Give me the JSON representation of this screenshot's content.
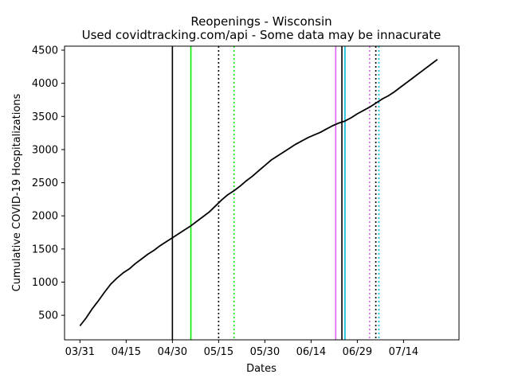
{
  "chart_data": {
    "type": "line",
    "title": "Reopenings - Wisconsin",
    "subtitle": "Used covidtracking.com/api - Some data may be innacurate",
    "xlabel": "Dates",
    "ylabel": "Cumulative COVID-19 Hospitalizations",
    "x_ticks": [
      "03/31",
      "04/15",
      "04/30",
      "05/15",
      "05/30",
      "06/14",
      "06/29",
      "07/14"
    ],
    "y_ticks": [
      500,
      1000,
      1500,
      2000,
      2500,
      3000,
      3500,
      4000,
      4500
    ],
    "xlim": [
      "03/26",
      "08/01"
    ],
    "ylim": [
      130,
      4560
    ],
    "grid": false,
    "legend": "none",
    "series": [
      {
        "color": "#000000",
        "x": [
          "03/31",
          "04/02",
          "04/04",
          "04/06",
          "04/08",
          "04/10",
          "04/12",
          "04/14",
          "04/16",
          "04/18",
          "04/20",
          "04/22",
          "04/24",
          "04/26",
          "04/28",
          "04/30",
          "05/02",
          "05/04",
          "05/06",
          "05/08",
          "05/10",
          "05/12",
          "05/14",
          "05/16",
          "05/18",
          "05/20",
          "05/22",
          "05/24",
          "05/26",
          "05/28",
          "05/30",
          "06/01",
          "06/03",
          "06/05",
          "06/07",
          "06/09",
          "06/11",
          "06/13",
          "06/15",
          "06/17",
          "06/19",
          "06/21",
          "06/23",
          "06/25",
          "06/27",
          "06/29",
          "07/01",
          "07/03",
          "07/05",
          "07/07",
          "07/09",
          "07/11",
          "07/13",
          "07/15",
          "07/17",
          "07/19",
          "07/21",
          "07/23",
          "07/25"
        ],
        "values": [
          340,
          460,
          600,
          720,
          850,
          970,
          1060,
          1140,
          1200,
          1280,
          1350,
          1420,
          1480,
          1550,
          1610,
          1670,
          1730,
          1790,
          1850,
          1920,
          1990,
          2060,
          2150,
          2240,
          2320,
          2380,
          2450,
          2530,
          2600,
          2680,
          2760,
          2840,
          2900,
          2960,
          3020,
          3080,
          3130,
          3180,
          3220,
          3260,
          3310,
          3360,
          3400,
          3430,
          3480,
          3540,
          3590,
          3640,
          3700,
          3760,
          3810,
          3870,
          3940,
          4010,
          4080,
          4150,
          4220,
          4290,
          4360
        ]
      }
    ],
    "reference_lines": [
      {
        "x": "04/30",
        "color": "#000000",
        "style": "solid"
      },
      {
        "x": "05/06",
        "color": "#00ee00",
        "style": "solid"
      },
      {
        "x": "05/15",
        "color": "#000000",
        "style": "dotted"
      },
      {
        "x": "05/20",
        "color": "#00ee00",
        "style": "dotted"
      },
      {
        "x": "06/22",
        "color": "#dd66ee",
        "style": "solid"
      },
      {
        "x": "06/24",
        "color": "#000000",
        "style": "solid"
      },
      {
        "x": "06/25",
        "color": "#00bbdd",
        "style": "solid"
      },
      {
        "x": "07/03",
        "color": "#dd66ee",
        "style": "dotted"
      },
      {
        "x": "07/05",
        "color": "#000000",
        "style": "dotted"
      },
      {
        "x": "07/06",
        "color": "#00bbdd",
        "style": "dotted"
      }
    ]
  }
}
